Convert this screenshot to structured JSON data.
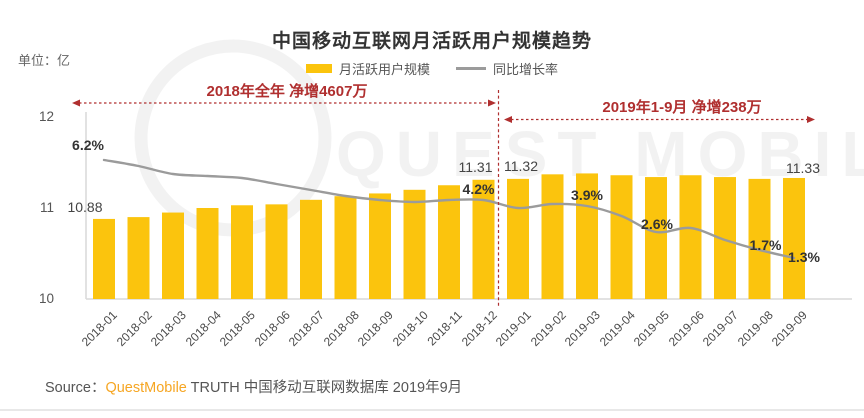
{
  "header": {
    "title": "中国移动互联网月活跃用户规模趋势",
    "unit_label": "单位：亿"
  },
  "legend": {
    "bar_label": "月活跃用户规模",
    "line_label": "同比增长率"
  },
  "annotations": {
    "period_2018": "2018年全年 净增4607万",
    "period_2019": "2019年1-9月 净增238万"
  },
  "colors": {
    "bar": "#FBC40D",
    "line": "#9B9B9B",
    "annotation_red": "#B02F2F",
    "brand_orange": "#F6A623",
    "axis_gray": "#D9D9D9"
  },
  "watermark": {
    "text": "QUEST MOBILE"
  },
  "chart_data": {
    "type": "bar+line",
    "title": "中国移动互联网月活跃用户规模趋势",
    "unit": "亿",
    "grid": false,
    "legend_position": "top",
    "categories": [
      "2018-01",
      "2018-02",
      "2018-03",
      "2018-04",
      "2018-05",
      "2018-06",
      "2018-07",
      "2018-08",
      "2018-09",
      "2018-10",
      "2018-11",
      "2018-12",
      "2019-01",
      "2019-02",
      "2019-03",
      "2019-04",
      "2019-05",
      "2019-06",
      "2019-07",
      "2019-08",
      "2019-09"
    ],
    "series": [
      {
        "name": "月活跃用户规模",
        "type": "bar",
        "axis": "left",
        "unit": "亿",
        "color": "#FBC40D",
        "values": [
          10.88,
          10.9,
          10.95,
          11.0,
          11.03,
          11.04,
          11.09,
          11.13,
          11.16,
          11.2,
          11.25,
          11.31,
          11.32,
          11.37,
          11.38,
          11.36,
          11.34,
          11.36,
          11.34,
          11.32,
          11.33
        ]
      },
      {
        "name": "同比增长率",
        "type": "line",
        "axis": "right",
        "unit": "%",
        "color": "#9B9B9B",
        "values": [
          6.2,
          5.9,
          5.5,
          5.4,
          5.3,
          5.0,
          4.7,
          4.4,
          4.2,
          4.1,
          4.2,
          4.2,
          3.8,
          4.0,
          3.9,
          3.4,
          2.6,
          2.8,
          2.2,
          1.7,
          1.3
        ]
      }
    ],
    "bar_point_labels": [
      {
        "index": 0,
        "text": "10.88"
      },
      {
        "index": 11,
        "text": "11.31"
      },
      {
        "index": 12,
        "text": "11.32"
      },
      {
        "index": 20,
        "text": "11.33"
      }
    ],
    "line_point_labels": [
      {
        "index": 0,
        "text": "6.2%"
      },
      {
        "index": 11,
        "text": "4.2%"
      },
      {
        "index": 14,
        "text": "3.9%"
      },
      {
        "index": 16,
        "text": "2.6%"
      },
      {
        "index": 19,
        "text": "1.7%"
      },
      {
        "index": 20,
        "text": "1.3%"
      }
    ],
    "y_axis_left": {
      "ticks": [
        12,
        11,
        10
      ],
      "range": [
        10,
        12
      ]
    },
    "divider_after_category": "2018-12"
  },
  "footer": {
    "source_label": "Source：",
    "brand": "QuestMobile",
    "rest": " TRUTH 中国移动互联网数据库 2019年9月"
  }
}
